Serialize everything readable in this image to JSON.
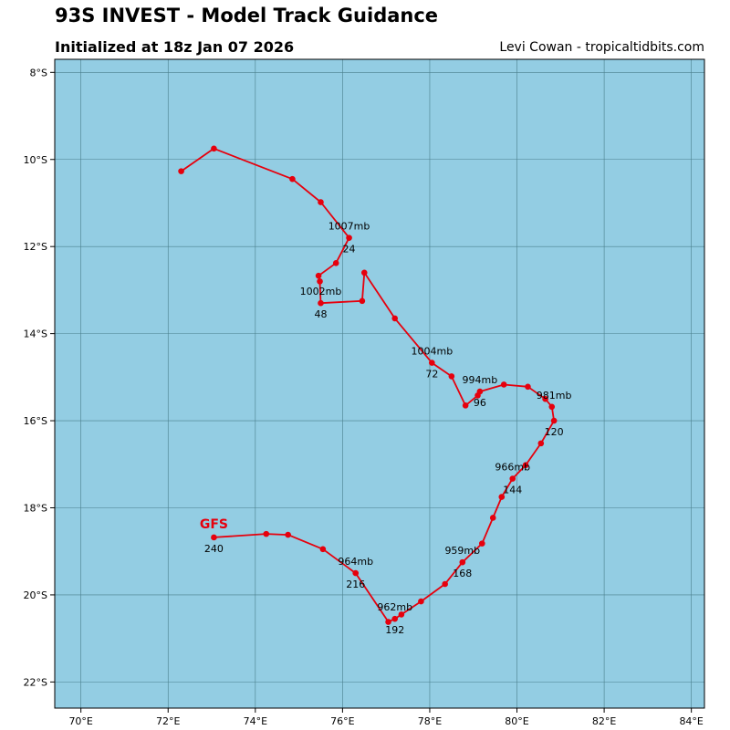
{
  "header": {
    "title": "93S INVEST - Model Track Guidance",
    "initialized": "Initialized at 18z Jan 07 2026",
    "credit": "Levi Cowan - tropicaltidbits.com"
  },
  "colors": {
    "ocean": "#93cde3",
    "grid": "#4a7f8c",
    "track": "#e6000d",
    "model_label": "#e6000d"
  },
  "chart_data": {
    "type": "map-track",
    "lon_range": [
      69.4,
      84.3
    ],
    "lat_range": [
      -22.6,
      -7.7
    ],
    "lon_ticks": [
      {
        "value": 70,
        "label": "70°E"
      },
      {
        "value": 72,
        "label": "72°E"
      },
      {
        "value": 74,
        "label": "74°E"
      },
      {
        "value": 76,
        "label": "76°E"
      },
      {
        "value": 78,
        "label": "78°E"
      },
      {
        "value": 80,
        "label": "80°E"
      },
      {
        "value": 82,
        "label": "82°E"
      },
      {
        "value": 84,
        "label": "84°E"
      }
    ],
    "lat_ticks": [
      {
        "value": -8,
        "label": "8°S"
      },
      {
        "value": -10,
        "label": "10°S"
      },
      {
        "value": -12,
        "label": "12°S"
      },
      {
        "value": -14,
        "label": "14°S"
      },
      {
        "value": -16,
        "label": "16°S"
      },
      {
        "value": -18,
        "label": "18°S"
      },
      {
        "value": -20,
        "label": "20°S"
      },
      {
        "value": -22,
        "label": "22°S"
      }
    ],
    "model": {
      "name": "GFS",
      "label": "GFS"
    },
    "track": [
      {
        "lon": 72.3,
        "lat": -10.27
      },
      {
        "lon": 73.05,
        "lat": -9.75
      },
      {
        "lon": 74.85,
        "lat": -10.45
      },
      {
        "lon": 75.5,
        "lat": -10.98
      },
      {
        "lon": 76.15,
        "lat": -11.8
      },
      {
        "lon": 75.85,
        "lat": -12.38
      },
      {
        "lon": 75.45,
        "lat": -12.67
      },
      {
        "lon": 75.48,
        "lat": -12.8
      },
      {
        "lon": 75.5,
        "lat": -13.3
      },
      {
        "lon": 76.45,
        "lat": -13.25
      },
      {
        "lon": 76.5,
        "lat": -12.6
      },
      {
        "lon": 77.2,
        "lat": -13.65
      },
      {
        "lon": 78.05,
        "lat": -14.67
      },
      {
        "lon": 78.5,
        "lat": -14.98
      },
      {
        "lon": 78.82,
        "lat": -15.65
      },
      {
        "lon": 79.1,
        "lat": -15.42
      },
      {
        "lon": 79.15,
        "lat": -15.33
      },
      {
        "lon": 79.7,
        "lat": -15.17
      },
      {
        "lon": 80.25,
        "lat": -15.22
      },
      {
        "lon": 80.65,
        "lat": -15.5
      },
      {
        "lon": 80.8,
        "lat": -15.68
      },
      {
        "lon": 80.85,
        "lat": -16.0
      },
      {
        "lon": 80.55,
        "lat": -16.52
      },
      {
        "lon": 80.2,
        "lat": -17.02
      },
      {
        "lon": 79.9,
        "lat": -17.33
      },
      {
        "lon": 79.65,
        "lat": -17.75
      },
      {
        "lon": 79.45,
        "lat": -18.23
      },
      {
        "lon": 79.2,
        "lat": -18.82
      },
      {
        "lon": 78.75,
        "lat": -19.25
      },
      {
        "lon": 78.35,
        "lat": -19.75
      },
      {
        "lon": 77.8,
        "lat": -20.15
      },
      {
        "lon": 77.35,
        "lat": -20.45
      },
      {
        "lon": 77.2,
        "lat": -20.55
      },
      {
        "lon": 77.05,
        "lat": -20.62
      },
      {
        "lon": 76.3,
        "lat": -19.5
      },
      {
        "lon": 75.55,
        "lat": -18.95
      },
      {
        "lon": 74.75,
        "lat": -18.62
      },
      {
        "lon": 74.25,
        "lat": -18.6
      },
      {
        "lon": 73.05,
        "lat": -18.68
      }
    ],
    "pressure_labels": [
      {
        "text": "1007mb",
        "lon": 76.15,
        "lat": -11.8
      },
      {
        "text": "1002mb",
        "lon": 75.5,
        "lat": -13.3
      },
      {
        "text": "1004mb",
        "lon": 78.05,
        "lat": -14.67
      },
      {
        "text": "994mb",
        "lon": 79.15,
        "lat": -15.33
      },
      {
        "text": "981mb",
        "lon": 80.85,
        "lat": -15.68
      },
      {
        "text": "966mb",
        "lon": 79.9,
        "lat": -17.33
      },
      {
        "text": "959mb",
        "lon": 78.75,
        "lat": -19.25
      },
      {
        "text": "964mb",
        "lon": 76.3,
        "lat": -19.5
      },
      {
        "text": "962mb",
        "lon": 77.2,
        "lat": -20.55
      }
    ],
    "hour_labels": [
      {
        "text": "24",
        "lon": 76.15,
        "lat": -11.8
      },
      {
        "text": "48",
        "lon": 75.5,
        "lat": -13.3
      },
      {
        "text": "72",
        "lon": 78.05,
        "lat": -14.67
      },
      {
        "text": "96",
        "lon": 79.15,
        "lat": -15.33
      },
      {
        "text": "120",
        "lon": 80.85,
        "lat": -16.0
      },
      {
        "text": "144",
        "lon": 79.9,
        "lat": -17.33
      },
      {
        "text": "168",
        "lon": 78.75,
        "lat": -19.25
      },
      {
        "text": "192",
        "lon": 77.2,
        "lat": -20.55
      },
      {
        "text": "216",
        "lon": 76.3,
        "lat": -19.5
      },
      {
        "text": "240",
        "lon": 73.05,
        "lat": -18.68
      }
    ]
  }
}
